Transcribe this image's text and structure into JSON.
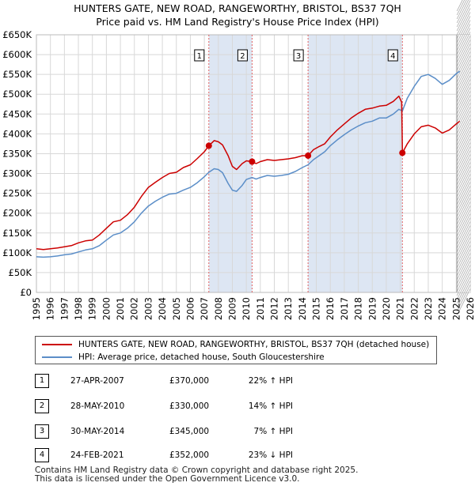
{
  "title": {
    "line1": "HUNTERS GATE, NEW ROAD, RANGEWORTHY, BRISTOL, BS37 7QH",
    "line2": "Price paid vs. HM Land Registry's House Price Index (HPI)"
  },
  "colors": {
    "property_line": "#cc0000",
    "hpi_line": "#5b8ec8",
    "shade": "#dde6f3",
    "marker_line": "#e06060",
    "grid": "#d8d8d8"
  },
  "chart_data": {
    "type": "line",
    "title": "Price paid vs. HM Land Registry's House Price Index (HPI)",
    "xlim": [
      1995,
      2026
    ],
    "ylim": [
      0,
      650000
    ],
    "y_ticks": [
      0,
      50000,
      100000,
      150000,
      200000,
      250000,
      300000,
      350000,
      400000,
      450000,
      500000,
      550000,
      600000,
      650000
    ],
    "y_tick_labels": [
      "£0",
      "£50K",
      "£100K",
      "£150K",
      "£200K",
      "£250K",
      "£300K",
      "£350K",
      "£400K",
      "£450K",
      "£500K",
      "£550K",
      "£600K",
      "£650K"
    ],
    "x_tick_labels": [
      "1995",
      "1996",
      "1997",
      "1998",
      "1999",
      "2000",
      "2001",
      "2002",
      "2003",
      "2004",
      "2005",
      "2006",
      "2007",
      "2008",
      "2009",
      "2010",
      "2011",
      "2012",
      "2013",
      "2014",
      "2015",
      "2016",
      "2017",
      "2018",
      "2019",
      "2020",
      "2021",
      "2022",
      "2023",
      "2024",
      "2025",
      "2026"
    ],
    "shaded_periods": [
      [
        2007.32,
        2010.41
      ],
      [
        2014.41,
        2021.15
      ]
    ],
    "future_start": 2025.05,
    "series": [
      {
        "name": "HUNTERS GATE, NEW ROAD, RANGEWORTHY, BRISTOL, BS37 7QH (detached house)",
        "points": [
          [
            1995.0,
            110000
          ],
          [
            1995.5,
            108000
          ],
          [
            1996.0,
            110000
          ],
          [
            1996.5,
            112000
          ],
          [
            1997.0,
            115000
          ],
          [
            1997.5,
            118000
          ],
          [
            1998.0,
            125000
          ],
          [
            1998.5,
            130000
          ],
          [
            1999.0,
            132000
          ],
          [
            1999.5,
            145000
          ],
          [
            2000.0,
            162000
          ],
          [
            2000.5,
            178000
          ],
          [
            2001.0,
            182000
          ],
          [
            2001.5,
            196000
          ],
          [
            2002.0,
            215000
          ],
          [
            2002.5,
            242000
          ],
          [
            2003.0,
            265000
          ],
          [
            2003.5,
            278000
          ],
          [
            2004.0,
            290000
          ],
          [
            2004.5,
            300000
          ],
          [
            2005.0,
            303000
          ],
          [
            2005.5,
            315000
          ],
          [
            2006.0,
            322000
          ],
          [
            2006.5,
            338000
          ],
          [
            2007.0,
            355000
          ],
          [
            2007.32,
            370000
          ],
          [
            2007.7,
            383000
          ],
          [
            2008.0,
            380000
          ],
          [
            2008.3,
            372000
          ],
          [
            2008.7,
            345000
          ],
          [
            2009.0,
            318000
          ],
          [
            2009.3,
            310000
          ],
          [
            2009.7,
            325000
          ],
          [
            2010.0,
            332000
          ],
          [
            2010.41,
            330000
          ],
          [
            2010.7,
            325000
          ],
          [
            2011.0,
            330000
          ],
          [
            2011.5,
            335000
          ],
          [
            2012.0,
            333000
          ],
          [
            2012.5,
            335000
          ],
          [
            2013.0,
            337000
          ],
          [
            2013.5,
            340000
          ],
          [
            2014.0,
            345000
          ],
          [
            2014.41,
            345000
          ],
          [
            2014.8,
            360000
          ],
          [
            2015.2,
            368000
          ],
          [
            2015.6,
            375000
          ],
          [
            2016.0,
            392000
          ],
          [
            2016.5,
            410000
          ],
          [
            2017.0,
            425000
          ],
          [
            2017.5,
            440000
          ],
          [
            2018.0,
            452000
          ],
          [
            2018.5,
            462000
          ],
          [
            2019.0,
            465000
          ],
          [
            2019.5,
            470000
          ],
          [
            2020.0,
            472000
          ],
          [
            2020.5,
            482000
          ],
          [
            2020.9,
            495000
          ],
          [
            2021.1,
            480000
          ],
          [
            2021.15,
            352000
          ],
          [
            2021.5,
            375000
          ],
          [
            2022.0,
            400000
          ],
          [
            2022.5,
            418000
          ],
          [
            2023.0,
            422000
          ],
          [
            2023.5,
            415000
          ],
          [
            2024.0,
            402000
          ],
          [
            2024.5,
            410000
          ],
          [
            2025.0,
            425000
          ],
          [
            2025.25,
            432000
          ]
        ]
      },
      {
        "name": "HPI: Average price, detached house, South Gloucestershire",
        "points": [
          [
            1995.0,
            90000
          ],
          [
            1995.5,
            89000
          ],
          [
            1996.0,
            90000
          ],
          [
            1996.5,
            92000
          ],
          [
            1997.0,
            95000
          ],
          [
            1997.5,
            97000
          ],
          [
            1998.0,
            102000
          ],
          [
            1998.5,
            107000
          ],
          [
            1999.0,
            110000
          ],
          [
            1999.5,
            118000
          ],
          [
            2000.0,
            132000
          ],
          [
            2000.5,
            145000
          ],
          [
            2001.0,
            150000
          ],
          [
            2001.5,
            162000
          ],
          [
            2002.0,
            178000
          ],
          [
            2002.5,
            200000
          ],
          [
            2003.0,
            218000
          ],
          [
            2003.5,
            230000
          ],
          [
            2004.0,
            240000
          ],
          [
            2004.5,
            248000
          ],
          [
            2005.0,
            250000
          ],
          [
            2005.5,
            258000
          ],
          [
            2006.0,
            265000
          ],
          [
            2006.5,
            277000
          ],
          [
            2007.0,
            292000
          ],
          [
            2007.32,
            303000
          ],
          [
            2007.7,
            312000
          ],
          [
            2008.0,
            310000
          ],
          [
            2008.3,
            302000
          ],
          [
            2008.7,
            275000
          ],
          [
            2009.0,
            258000
          ],
          [
            2009.3,
            255000
          ],
          [
            2009.7,
            270000
          ],
          [
            2010.0,
            285000
          ],
          [
            2010.41,
            290000
          ],
          [
            2010.7,
            286000
          ],
          [
            2011.0,
            290000
          ],
          [
            2011.5,
            295000
          ],
          [
            2012.0,
            293000
          ],
          [
            2012.5,
            295000
          ],
          [
            2013.0,
            298000
          ],
          [
            2013.5,
            305000
          ],
          [
            2014.0,
            315000
          ],
          [
            2014.41,
            322000
          ],
          [
            2014.8,
            335000
          ],
          [
            2015.2,
            345000
          ],
          [
            2015.6,
            355000
          ],
          [
            2016.0,
            370000
          ],
          [
            2016.5,
            385000
          ],
          [
            2017.0,
            398000
          ],
          [
            2017.5,
            410000
          ],
          [
            2018.0,
            420000
          ],
          [
            2018.5,
            428000
          ],
          [
            2019.0,
            432000
          ],
          [
            2019.5,
            440000
          ],
          [
            2020.0,
            440000
          ],
          [
            2020.5,
            450000
          ],
          [
            2020.9,
            462000
          ],
          [
            2021.15,
            458000
          ],
          [
            2021.5,
            490000
          ],
          [
            2022.0,
            520000
          ],
          [
            2022.5,
            545000
          ],
          [
            2023.0,
            550000
          ],
          [
            2023.5,
            540000
          ],
          [
            2024.0,
            525000
          ],
          [
            2024.5,
            535000
          ],
          [
            2025.0,
            552000
          ],
          [
            2025.25,
            558000
          ]
        ]
      }
    ],
    "sales": [
      {
        "label": "1",
        "x": 2007.32,
        "y": 370000
      },
      {
        "label": "2",
        "x": 2010.41,
        "y": 330000
      },
      {
        "label": "3",
        "x": 2014.41,
        "y": 345000
      },
      {
        "label": "4",
        "x": 2021.15,
        "y": 352000
      }
    ]
  },
  "legend": {
    "property": "HUNTERS GATE, NEW ROAD, RANGEWORTHY, BRISTOL, BS37 7QH (detached house)",
    "hpi": "HPI: Average price, detached house, South Gloucestershire"
  },
  "transactions": [
    {
      "num": "1",
      "date": "27-APR-2007",
      "price": "£370,000",
      "hpi": "22% ↑ HPI"
    },
    {
      "num": "2",
      "date": "28-MAY-2010",
      "price": "£330,000",
      "hpi": "14% ↑ HPI"
    },
    {
      "num": "3",
      "date": "30-MAY-2014",
      "price": "£345,000",
      "hpi": "7% ↑ HPI"
    },
    {
      "num": "4",
      "date": "24-FEB-2021",
      "price": "£352,000",
      "hpi": "23% ↓ HPI"
    }
  ],
  "footer": {
    "line1": "Contains HM Land Registry data © Crown copyright and database right 2025.",
    "line2": "This data is licensed under the Open Government Licence v3.0."
  }
}
